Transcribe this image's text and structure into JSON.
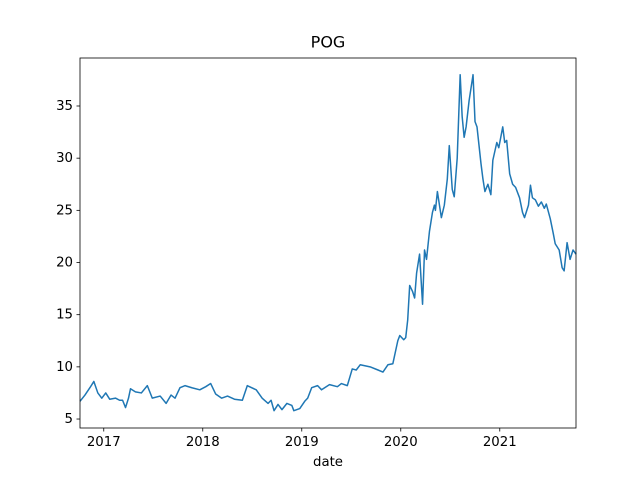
{
  "chart_data": {
    "type": "line",
    "title": "POG",
    "xlabel": "date",
    "color": "#1f77b4",
    "x": [
      2016.76,
      2016.81,
      2016.86,
      2016.9,
      2016.94,
      2016.98,
      2017.02,
      2017.06,
      2017.12,
      2017.16,
      2017.19,
      2017.22,
      2017.25,
      2017.27,
      2017.32,
      2017.38,
      2017.44,
      2017.49,
      2017.57,
      2017.63,
      2017.68,
      2017.72,
      2017.77,
      2017.82,
      2017.89,
      2017.97,
      2018.03,
      2018.08,
      2018.13,
      2018.19,
      2018.25,
      2018.32,
      2018.4,
      2018.45,
      2018.54,
      2018.6,
      2018.66,
      2018.69,
      2018.72,
      2018.76,
      2018.8,
      2018.85,
      2018.9,
      2018.92,
      2018.98,
      2019.03,
      2019.06,
      2019.1,
      2019.16,
      2019.2,
      2019.28,
      2019.36,
      2019.4,
      2019.46,
      2019.51,
      2019.55,
      2019.59,
      2019.69,
      2019.77,
      2019.82,
      2019.87,
      2019.92,
      2019.97,
      2019.99,
      2020.03,
      2020.05,
      2020.07,
      2020.09,
      2020.12,
      2020.14,
      2020.16,
      2020.19,
      2020.22,
      2020.24,
      2020.26,
      2020.29,
      2020.32,
      2020.34,
      2020.35,
      2020.37,
      2020.41,
      2020.44,
      2020.47,
      2020.49,
      2020.52,
      2020.54,
      2020.57,
      2020.6,
      2020.62,
      2020.64,
      2020.66,
      2020.69,
      2020.73,
      2020.75,
      2020.77,
      2020.81,
      2020.83,
      2020.85,
      2020.88,
      2020.91,
      2020.93,
      2020.97,
      2020.99,
      2021.03,
      2021.05,
      2021.07,
      2021.1,
      2021.13,
      2021.16,
      2021.2,
      2021.23,
      2021.25,
      2021.29,
      2021.31,
      2021.33,
      2021.36,
      2021.39,
      2021.42,
      2021.45,
      2021.47,
      2021.51,
      2021.54,
      2021.56,
      2021.6,
      2021.63,
      2021.65,
      2021.68,
      2021.71,
      2021.74,
      2021.77
    ],
    "values": [
      6.7,
      7.3,
      8.0,
      8.6,
      7.5,
      7.0,
      7.5,
      6.9,
      7.0,
      6.8,
      6.8,
      6.1,
      7.0,
      7.9,
      7.6,
      7.5,
      8.2,
      7.0,
      7.2,
      6.5,
      7.3,
      7.0,
      8.0,
      8.2,
      8.0,
      7.8,
      8.1,
      8.4,
      7.4,
      7.0,
      7.2,
      6.9,
      6.8,
      8.2,
      7.8,
      7.0,
      6.5,
      6.8,
      5.8,
      6.4,
      5.9,
      6.5,
      6.3,
      5.8,
      6.0,
      6.7,
      7.0,
      8.0,
      8.2,
      7.8,
      8.3,
      8.1,
      8.4,
      8.2,
      9.8,
      9.7,
      10.2,
      10.0,
      9.7,
      9.5,
      10.2,
      10.3,
      12.5,
      13.0,
      12.6,
      12.8,
      14.5,
      17.8,
      17.2,
      16.6,
      19.0,
      20.8,
      16.0,
      21.2,
      20.3,
      23.0,
      24.8,
      25.5,
      25.0,
      26.8,
      24.3,
      25.5,
      28.0,
      31.2,
      27.0,
      26.3,
      30.0,
      38.0,
      34.0,
      32.0,
      33.0,
      35.5,
      38.0,
      33.5,
      33.0,
      29.5,
      28.0,
      26.8,
      27.5,
      26.5,
      29.8,
      31.5,
      31.0,
      33.0,
      31.5,
      31.7,
      28.5,
      27.5,
      27.2,
      26.2,
      24.8,
      24.3,
      25.5,
      27.4,
      26.2,
      26.0,
      25.4,
      25.8,
      25.2,
      25.6,
      24.2,
      22.8,
      21.8,
      21.2,
      19.5,
      19.2,
      21.9,
      20.3,
      21.2,
      20.8
    ],
    "xlim": [
      2016.76,
      2021.77
    ],
    "xticks": [
      2017,
      2018,
      2019,
      2020,
      2021
    ],
    "ylim": [
      4.14,
      39.6
    ],
    "yticks": [
      5,
      10,
      15,
      20,
      25,
      30,
      35
    ]
  }
}
